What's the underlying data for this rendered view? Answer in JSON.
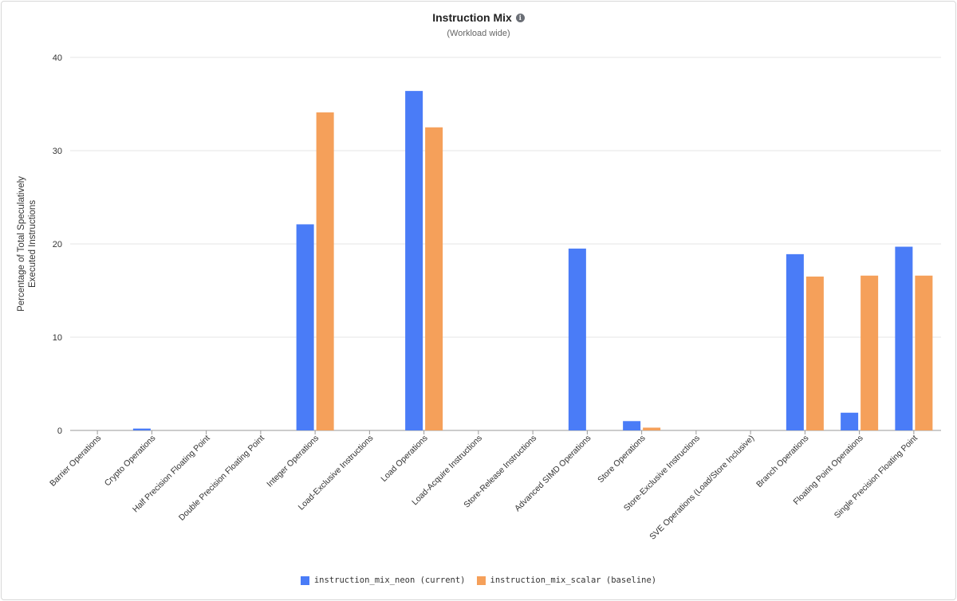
{
  "header": {
    "title": "Instruction Mix",
    "info_icon": "info-icon",
    "subtitle": "(Workload wide)"
  },
  "chart_data": {
    "type": "bar",
    "title": "Instruction Mix",
    "subtitle": "(Workload wide)",
    "xlabel": "",
    "ylabel": "Percentage of Total Speculatively Executed Instructions",
    "ylabel_lines": [
      "Percentage of Total Speculatively",
      "Executed Instructions"
    ],
    "ylim": [
      0,
      40
    ],
    "yticks": [
      "0",
      "10",
      "20",
      "30",
      "40"
    ],
    "grid": true,
    "legend_position": "bottom",
    "categories": [
      "Barrier Operations",
      "Crypto Operations",
      "Half Precision Floating Point",
      "Double Precision Floating Point",
      "Integer Operations",
      "Load-Exclusive Instructions",
      "Load Operations",
      "Load-Acquire Instructions",
      "Store-Release Instructions",
      "Advanced SIMD Operations",
      "Store Operations",
      "Store-Exclusive Instructions",
      "SVE Operations (Load/Store Inclusive)",
      "Branch Operations",
      "Floating Point Operations",
      "Single Precision Floating Point"
    ],
    "series": [
      {
        "name": "instruction_mix_neon (current)",
        "color": "#4a7cf7",
        "values": [
          0,
          0.2,
          0,
          0,
          22.1,
          0,
          36.4,
          0,
          0,
          19.5,
          1.0,
          0,
          0,
          18.9,
          1.9,
          19.7
        ]
      },
      {
        "name": "instruction_mix_scalar (baseline)",
        "color": "#f5a05a",
        "values": [
          0,
          0,
          0,
          0,
          34.1,
          0,
          32.5,
          0,
          0,
          0,
          0.3,
          0,
          0,
          16.5,
          16.6,
          16.6
        ]
      }
    ]
  }
}
